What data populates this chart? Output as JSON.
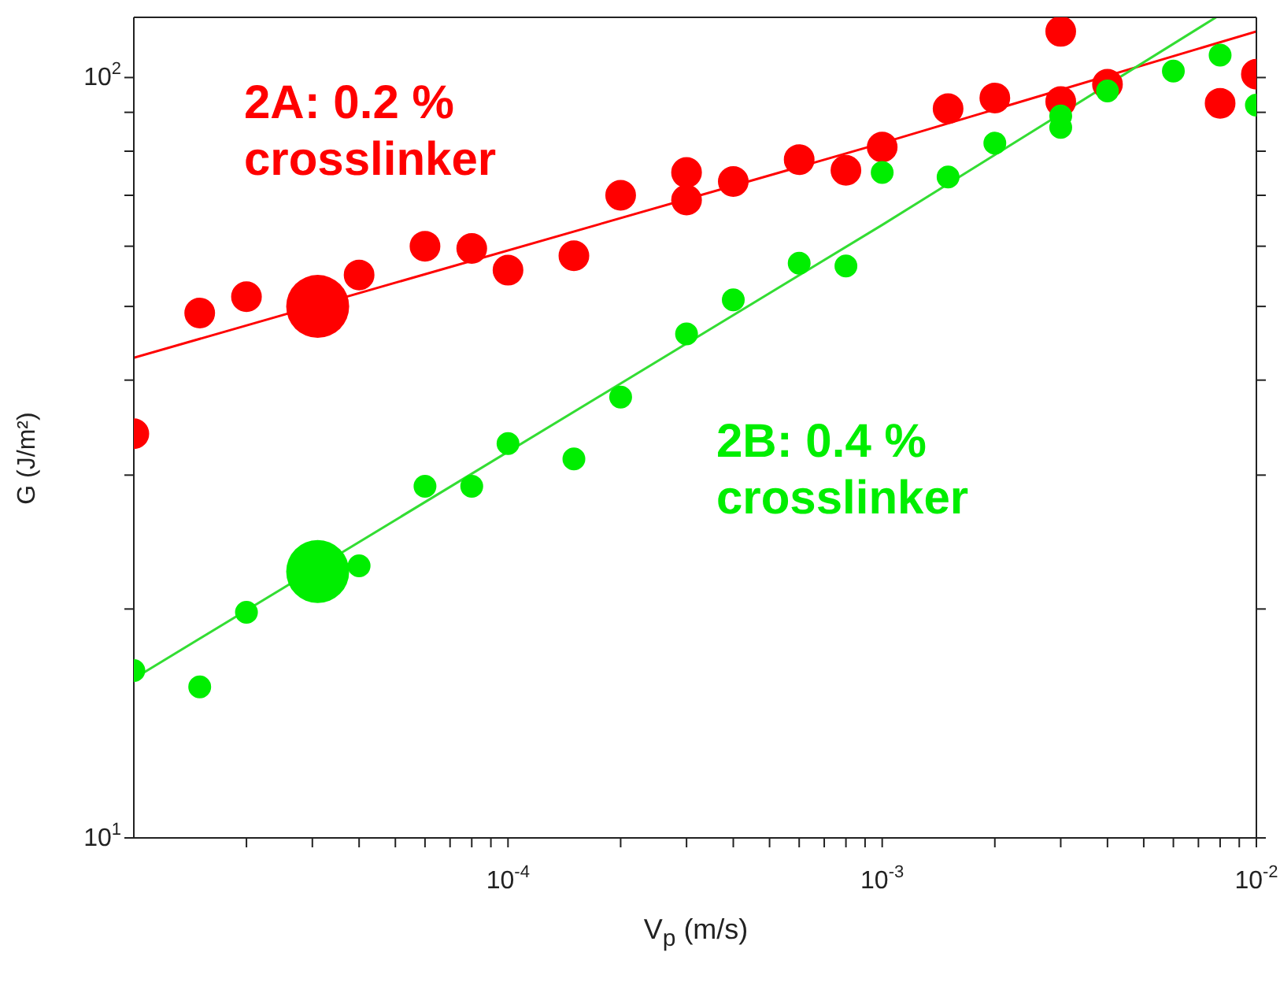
{
  "chart_data": {
    "type": "scatter",
    "xlabel": "V$_{p}$ (m/s)",
    "ylabel": "G (J/m²)",
    "log": "xy",
    "xlim": [
      1e-05,
      0.01
    ],
    "ylim": [
      10,
      120
    ],
    "xticks": [
      {
        "value": 2e-05,
        "label": null
      },
      {
        "value": 3e-05,
        "label": null
      },
      {
        "value": 4e-05,
        "label": null
      },
      {
        "value": 5e-05,
        "label": null
      },
      {
        "value": 6e-05,
        "label": null
      },
      {
        "value": 7e-05,
        "label": null
      },
      {
        "value": 8e-05,
        "label": null
      },
      {
        "value": 9e-05,
        "label": null
      },
      {
        "value": 0.0001,
        "label": "10$^{-4}$"
      },
      {
        "value": 0.0002,
        "label": null
      },
      {
        "value": 0.0003,
        "label": null
      },
      {
        "value": 0.0004,
        "label": null
      },
      {
        "value": 0.0005,
        "label": null
      },
      {
        "value": 0.0006,
        "label": null
      },
      {
        "value": 0.0007,
        "label": null
      },
      {
        "value": 0.0008,
        "label": null
      },
      {
        "value": 0.0009,
        "label": null
      },
      {
        "value": 0.001,
        "label": "10$^{-3}$"
      },
      {
        "value": 0.002,
        "label": null
      },
      {
        "value": 0.003,
        "label": null
      },
      {
        "value": 0.004,
        "label": null
      },
      {
        "value": 0.005,
        "label": null
      },
      {
        "value": 0.006,
        "label": null
      },
      {
        "value": 0.007,
        "label": null
      },
      {
        "value": 0.008,
        "label": null
      },
      {
        "value": 0.009,
        "label": null
      },
      {
        "value": 0.01,
        "label": "10$^{-2}$"
      }
    ],
    "yticks": [
      {
        "value": 10,
        "label": "10$^{1}$"
      },
      {
        "value": 20,
        "label": null
      },
      {
        "value": 30,
        "label": null
      },
      {
        "value": 40,
        "label": null
      },
      {
        "value": 50,
        "label": null
      },
      {
        "value": 60,
        "label": null
      },
      {
        "value": 70,
        "label": null
      },
      {
        "value": 80,
        "label": null
      },
      {
        "value": 90,
        "label": null
      },
      {
        "value": 100,
        "label": "10$^{2}$"
      }
    ],
    "series": [
      {
        "name": "2A: 0.2 % crosslinker",
        "color": "#ff0000",
        "marker": "circle",
        "x": [
          1e-05,
          1.5e-05,
          2e-05,
          4e-05,
          6e-05,
          8e-05,
          0.0001,
          0.00015,
          0.0002,
          0.0003,
          0.0003,
          0.0004,
          0.0006,
          0.0008,
          0.001,
          0.0015,
          0.002,
          0.003,
          0.003,
          0.004,
          0.008,
          0.01
        ],
        "values": [
          34,
          49,
          51.5,
          55,
          60,
          59.6,
          55.8,
          58.3,
          70,
          75,
          69,
          73,
          78,
          75.5,
          81,
          91,
          94,
          115,
          93,
          98,
          92.5,
          101
        ]
      },
      {
        "type": "bubble",
        "color": "#ff0000",
        "x": [
          3.1e-05
        ],
        "values": [
          50
        ],
        "sizes": [
          1
        ]
      },
      {
        "type": "line",
        "color": "#ff0000",
        "x": [
          1e-05,
          0.001,
          0.01
        ],
        "values": [
          42.8,
          82,
          115
        ]
      },
      {
        "name": "2B: 0.4 % crosslinker",
        "color": "#00ee00",
        "marker": "circle",
        "x": [
          1e-05,
          1.5e-05,
          2e-05,
          4e-05,
          6e-05,
          8e-05,
          0.0001,
          0.00015,
          0.0002,
          0.0003,
          0.0004,
          0.0006,
          0.0008,
          0.001,
          0.0015,
          0.002,
          0.003,
          0.003,
          0.004,
          0.006,
          0.008,
          0.01
        ],
        "values": [
          16.6,
          15.8,
          19.8,
          22.8,
          29,
          29,
          33,
          31.5,
          38,
          46,
          51,
          57,
          56.5,
          75,
          74,
          82,
          86,
          89,
          96,
          102,
          107,
          92
        ]
      },
      {
        "type": "bubble",
        "color": "#00ee00",
        "x": [
          3.1e-05
        ],
        "values": [
          22.4
        ],
        "sizes": [
          1
        ]
      },
      {
        "type": "line",
        "color": "#33dd33",
        "x": [
          1e-05,
          0.001,
          0.0078
        ],
        "values": [
          16.2,
          64,
          120
        ]
      }
    ]
  }
}
